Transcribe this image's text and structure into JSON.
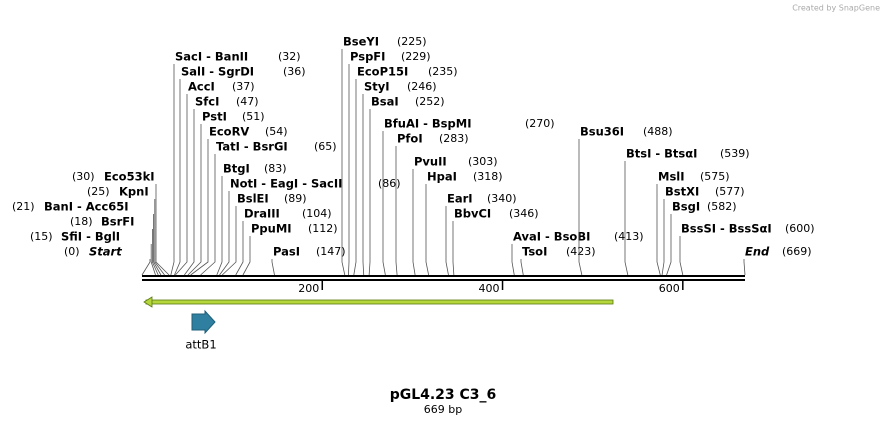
{
  "credit": "Created by SnapGene",
  "title": "pGL4.23 C3_6",
  "length_label": "669 bp",
  "length": 669,
  "ruler_ticks": [
    200,
    400,
    600
  ],
  "features": [
    {
      "name": "attB1"
    }
  ],
  "sites": [
    {
      "name": "Start",
      "position": {
        "value": 0,
        "label": "(0)"
      }
    },
    {
      "name": "SfiI - BglI",
      "position": {
        "value": 15,
        "label": "(15)"
      }
    },
    {
      "name": "BsrFI",
      "position": {
        "value": 18,
        "label": "(18)"
      }
    },
    {
      "name": "BanI - Acc65I",
      "position": {
        "value": 21,
        "label": "(21)"
      }
    },
    {
      "name": "KpnI",
      "position": {
        "value": 25,
        "label": "(25)"
      }
    },
    {
      "name": "Eco53kI",
      "position": {
        "value": 30,
        "label": "(30)"
      }
    },
    {
      "name": "SacI - BanII",
      "position": {
        "value": 32,
        "label": "(32)"
      }
    },
    {
      "name": "SalI - SgrDI",
      "position": {
        "value": 36,
        "label": "(36)"
      }
    },
    {
      "name": "AccI",
      "position": {
        "value": 37,
        "label": "(37)"
      }
    },
    {
      "name": "SfcI",
      "position": {
        "value": 47,
        "label": "(47)"
      }
    },
    {
      "name": "PstI",
      "position": {
        "value": 51,
        "label": "(51)"
      }
    },
    {
      "name": "EcoRV",
      "position": {
        "value": 54,
        "label": "(54)"
      }
    },
    {
      "name": "TatI - BsrGI",
      "position": {
        "value": 65,
        "label": "(65)"
      }
    },
    {
      "name": "BtgI",
      "position": {
        "value": 83,
        "label": "(83)"
      }
    },
    {
      "name": "NotI - EagI - SacII",
      "position": {
        "value": 86,
        "label": "(86)"
      }
    },
    {
      "name": "BslEI",
      "position": {
        "value": 89,
        "label": "(89)"
      }
    },
    {
      "name": "DraIII",
      "position": {
        "value": 104,
        "label": "(104)"
      }
    },
    {
      "name": "PpuMI",
      "position": {
        "value": 112,
        "label": "(112)"
      }
    },
    {
      "name": "PasI",
      "position": {
        "value": 147,
        "label": "(147)"
      }
    },
    {
      "name": "BseYI",
      "position": {
        "value": 225,
        "label": "(225)"
      }
    },
    {
      "name": "PspFI",
      "position": {
        "value": 229,
        "label": "(229)"
      }
    },
    {
      "name": "EcoP15I",
      "position": {
        "value": 235,
        "label": "(235)"
      }
    },
    {
      "name": "StyI",
      "position": {
        "value": 246,
        "label": "(246)"
      }
    },
    {
      "name": "BsaI",
      "position": {
        "value": 252,
        "label": "(252)"
      }
    },
    {
      "name": "BfuAI - BspMI",
      "position": {
        "value": 270,
        "label": "(270)"
      }
    },
    {
      "name": "PfoI",
      "position": {
        "value": 283,
        "label": "(283)"
      }
    },
    {
      "name": "PvuII",
      "position": {
        "value": 303,
        "label": "(303)"
      }
    },
    {
      "name": "HpaI",
      "position": {
        "value": 318,
        "label": "(318)"
      }
    },
    {
      "name": "EarI",
      "position": {
        "value": 340,
        "label": "(340)"
      }
    },
    {
      "name": "BbvCI",
      "position": {
        "value": 346,
        "label": "(346)"
      }
    },
    {
      "name": "AvaI - BsoBI",
      "position": {
        "value": 413,
        "label": "(413)"
      }
    },
    {
      "name": "TsoI",
      "position": {
        "value": 423,
        "label": "(423)"
      }
    },
    {
      "name": "Bsu36I",
      "position": {
        "value": 488,
        "label": "(488)"
      }
    },
    {
      "name": "BtsI - BtsαI",
      "position": {
        "value": 539,
        "label": "(539)"
      }
    },
    {
      "name": "MslI",
      "position": {
        "value": 575,
        "label": "(575)"
      }
    },
    {
      "name": "BstXI",
      "position": {
        "value": 577,
        "label": "(577)"
      }
    },
    {
      "name": "BsgI",
      "position": {
        "value": 582,
        "label": "(582)"
      }
    },
    {
      "name": "BssSI - BssSαI",
      "position": {
        "value": 600,
        "label": "(600)"
      }
    },
    {
      "name": "End",
      "position": {
        "value": 669,
        "label": "(669)"
      }
    }
  ]
}
